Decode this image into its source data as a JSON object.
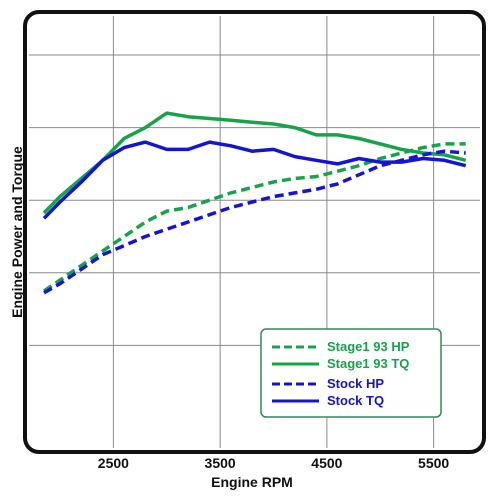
{
  "chart_data": {
    "type": "line",
    "xlabel": "Engine RPM",
    "ylabel": "Engine Power and Torque",
    "xlim": [
      1850,
      5850
    ],
    "ylim": [
      0,
      100
    ],
    "x_ticks": [
      2500,
      3500,
      4500,
      5500
    ],
    "y_gridlines": [
      20,
      40,
      60,
      80,
      100
    ],
    "grid": true,
    "legend_position": "bottom-right",
    "colors": {
      "stage1": "#16a34a",
      "stock": "#1414d2",
      "frame": "#111111",
      "legend_border": "#2e8b57"
    },
    "series": [
      {
        "name": "Stage1 93 HP",
        "style": "dashed",
        "color": "#16a34a",
        "x": [
          1850,
          2000,
          2200,
          2400,
          2600,
          2800,
          3000,
          3200,
          3400,
          3600,
          3800,
          4000,
          4200,
          4400,
          4600,
          4800,
          5000,
          5200,
          5400,
          5600,
          5800
        ],
        "y": [
          35,
          38,
          42,
          46,
          50,
          54,
          57,
          58,
          60,
          62,
          63.5,
          65,
          66,
          66.5,
          68,
          69.5,
          71.5,
          73,
          74.5,
          75.5,
          75.5
        ]
      },
      {
        "name": "Stage1 93 TQ",
        "style": "solid",
        "color": "#16a34a",
        "x": [
          1850,
          2000,
          2200,
          2400,
          2600,
          2800,
          3000,
          3200,
          3400,
          3600,
          3800,
          4000,
          4200,
          4400,
          4600,
          4800,
          5000,
          5200,
          5400,
          5600,
          5800
        ],
        "y": [
          56.5,
          61,
          66,
          71,
          77,
          80,
          84,
          83,
          82.5,
          82,
          81.5,
          81,
          80,
          78,
          78,
          77,
          75.5,
          74,
          73,
          72.5,
          71
        ]
      },
      {
        "name": "Stock HP",
        "style": "dashed",
        "color": "#1414d2",
        "x": [
          1850,
          2000,
          2200,
          2400,
          2600,
          2800,
          3000,
          3200,
          3400,
          3600,
          3800,
          4000,
          4200,
          4400,
          4600,
          4800,
          5000,
          5200,
          5400,
          5600,
          5800
        ],
        "y": [
          34.5,
          37,
          41,
          45,
          47.5,
          50,
          52,
          54,
          56,
          58,
          59.5,
          61,
          62,
          63,
          64.5,
          67,
          69.5,
          71,
          72.5,
          73.5,
          73
        ]
      },
      {
        "name": "Stock TQ",
        "style": "solid",
        "color": "#1414d2",
        "x": [
          1850,
          2000,
          2200,
          2400,
          2600,
          2800,
          3000,
          3200,
          3400,
          3600,
          3800,
          4000,
          4200,
          4400,
          4600,
          4800,
          5000,
          5200,
          5400,
          5600,
          5800
        ],
        "y": [
          55,
          59.5,
          65,
          71,
          74.5,
          76,
          74,
          74,
          76,
          75,
          73.5,
          74,
          72,
          71,
          70,
          71.5,
          70.5,
          70.5,
          71.5,
          71,
          69.5
        ]
      }
    ]
  }
}
